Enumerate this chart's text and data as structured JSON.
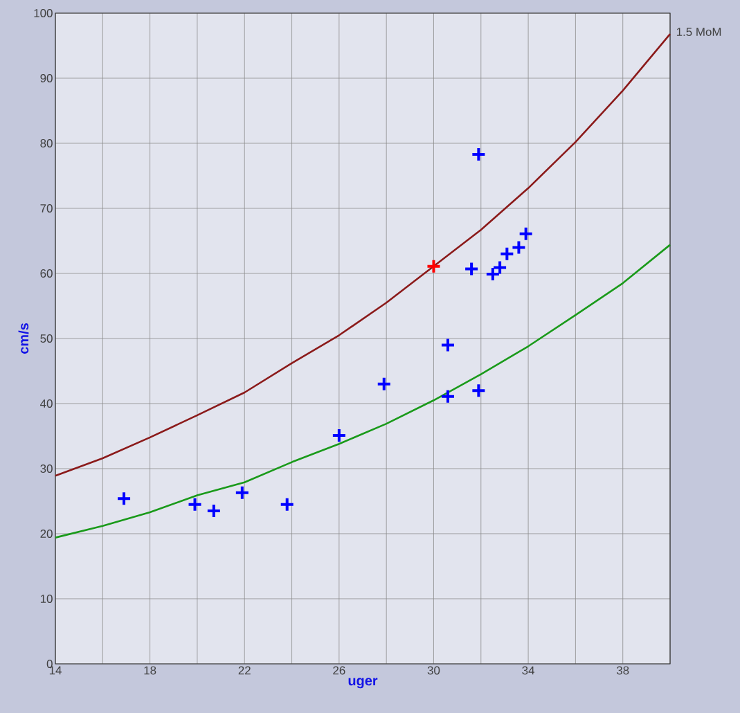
{
  "chart_data": {
    "type": "scatter",
    "xlabel": "uger",
    "ylabel": "cm/s",
    "xlim": [
      14,
      40
    ],
    "ylim": [
      0,
      100
    ],
    "xticks": [
      14,
      {
        "value": 16,
        "label": null
      },
      18,
      {
        "value": 20,
        "label": null
      },
      22,
      {
        "value": 24,
        "label": null
      },
      26,
      {
        "value": 28,
        "label": null
      },
      30,
      {
        "value": 32,
        "label": null
      },
      34,
      {
        "value": 36,
        "label": null
      },
      38,
      {
        "value": 40,
        "label": null
      }
    ],
    "yticks": [
      0,
      10,
      20,
      30,
      40,
      50,
      60,
      70,
      80,
      90,
      100
    ],
    "grid": true,
    "series": [
      {
        "name": "1.5 MoM",
        "type": "line",
        "marker": "none",
        "color": "#8b1a1a",
        "x": [
          14,
          16,
          18,
          20,
          22,
          24,
          26,
          28,
          30,
          32,
          34,
          36,
          38,
          40
        ],
        "values": [
          28.9,
          31.6,
          34.8,
          38.2,
          41.7,
          46.2,
          50.5,
          55.5,
          61.1,
          66.7,
          73.1,
          80.2,
          88.1,
          96.8
        ]
      },
      {
        "type": "line",
        "marker": "none",
        "color": "#1a9a1a",
        "x": [
          14,
          16,
          18,
          20,
          22,
          24,
          26,
          28,
          30,
          32,
          34,
          36,
          38,
          40
        ],
        "values": [
          19.4,
          21.2,
          23.3,
          25.9,
          27.9,
          31.0,
          33.8,
          36.9,
          40.5,
          44.5,
          48.8,
          53.6,
          58.5,
          64.4
        ]
      },
      {
        "marker": "cross",
        "color": "#0000ff",
        "x": [
          16.9,
          19.9,
          20.7,
          21.9,
          23.8,
          26.0,
          27.9,
          30.6,
          30.6,
          31.9,
          31.6,
          31.9,
          32.5,
          32.8,
          33.1,
          33.6,
          33.9
        ],
        "values": [
          25.4,
          24.5,
          23.5,
          26.3,
          24.5,
          35.1,
          43.0,
          49.0,
          41.1,
          42.0,
          60.7,
          78.3,
          59.9,
          60.9,
          63.0,
          64.0,
          66.1
        ]
      },
      {
        "marker": "cross",
        "color": "#ff0000",
        "x": [
          30.0
        ],
        "values": [
          61.1
        ]
      }
    ]
  }
}
